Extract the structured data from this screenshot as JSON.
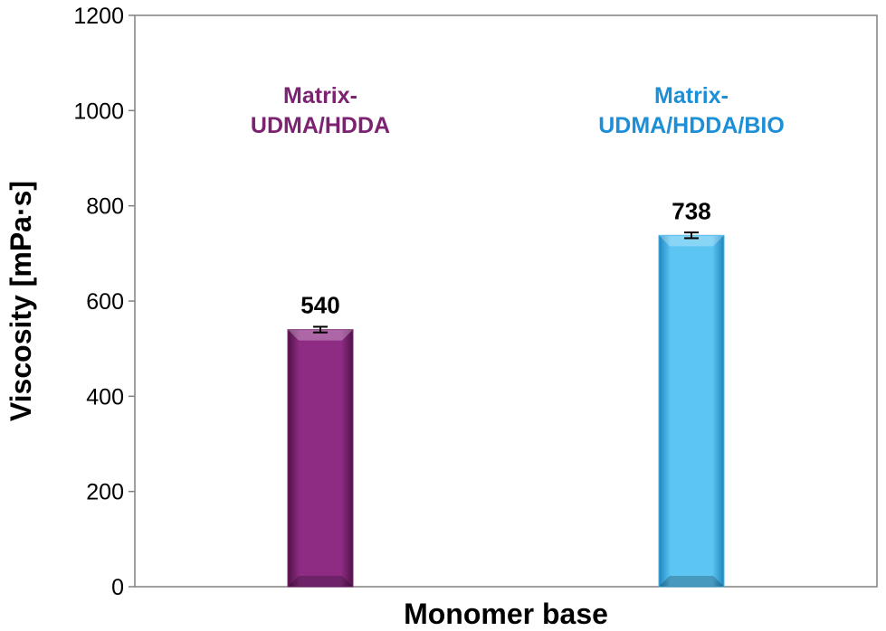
{
  "chart_data": {
    "type": "bar",
    "title": "",
    "xlabel": "Monomer base",
    "ylabel": "Viscosity [mPa·s]",
    "ylim": [
      0,
      1200
    ],
    "yticks": [
      0,
      200,
      400,
      600,
      800,
      1000,
      1200
    ],
    "grid": false,
    "bars": [
      {
        "label_lines": [
          "Matrix-",
          "UDMA/HDDA"
        ],
        "value": 540,
        "value_label": "540",
        "error": 6,
        "color": "#7b2270",
        "label_color": "#7b2270"
      },
      {
        "label_lines": [
          "Matrix-",
          "UDMA/HDDA/BIO"
        ],
        "value": 738,
        "value_label": "738",
        "error": 6,
        "color": "#3fb4ea",
        "label_color": "#1d8fd6"
      }
    ]
  }
}
